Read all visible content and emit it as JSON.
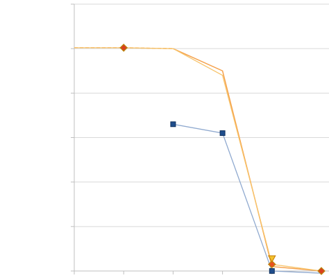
{
  "chart_data": {
    "type": "line",
    "title": "",
    "xlabel": "",
    "ylabel": "",
    "x": [
      0,
      1,
      2,
      3,
      4,
      5
    ],
    "xlim": [
      0,
      5
    ],
    "ylim": [
      0,
      6
    ],
    "y_gridlines": [
      0,
      1,
      2,
      3,
      4,
      5,
      6
    ],
    "x_ticks": [
      0,
      1,
      2,
      3,
      4,
      5
    ],
    "grid": true,
    "legend": "none",
    "series": [
      {
        "key": "orange",
        "color": "#f5a04a",
        "values": [
          5.02,
          5.02,
          5.0,
          4.5,
          0.1,
          0.0
        ],
        "style": "dash-then-solid",
        "markers": [
          {
            "x": 1,
            "y": 5.02,
            "shape": "diamond",
            "fill": "#d9401f",
            "stroke": "#b8860b"
          },
          {
            "x": 4,
            "y": 0.15,
            "shape": "diamond",
            "fill": "#e8501f",
            "stroke": "#b8860b"
          },
          {
            "x": 5,
            "y": 0.0,
            "shape": "diamond",
            "fill": "#d9401f",
            "stroke": "#b8860b"
          }
        ]
      },
      {
        "key": "yellow",
        "color": "#f7c46b",
        "values": [
          5.02,
          5.02,
          5.0,
          4.4,
          0.15,
          0.0
        ],
        "style": "solid",
        "markers": [
          {
            "x": 4,
            "y": 0.28,
            "shape": "triangle-down",
            "fill": "#f2c12e",
            "stroke": "#c47a00"
          }
        ]
      },
      {
        "key": "blue",
        "color": "#8fa9cf",
        "values": [
          null,
          null,
          3.3,
          3.1,
          0.0,
          -0.05
        ],
        "style": "solid",
        "markers": [
          {
            "x": 2,
            "y": 3.3,
            "shape": "square",
            "fill": "#1f4e8c",
            "stroke": "#12325e"
          },
          {
            "x": 3,
            "y": 3.1,
            "shape": "square",
            "fill": "#1f4e8c",
            "stroke": "#12325e"
          },
          {
            "x": 4,
            "y": 0.0,
            "shape": "square",
            "fill": "#1f4e8c",
            "stroke": "#12325e"
          }
        ]
      }
    ]
  }
}
